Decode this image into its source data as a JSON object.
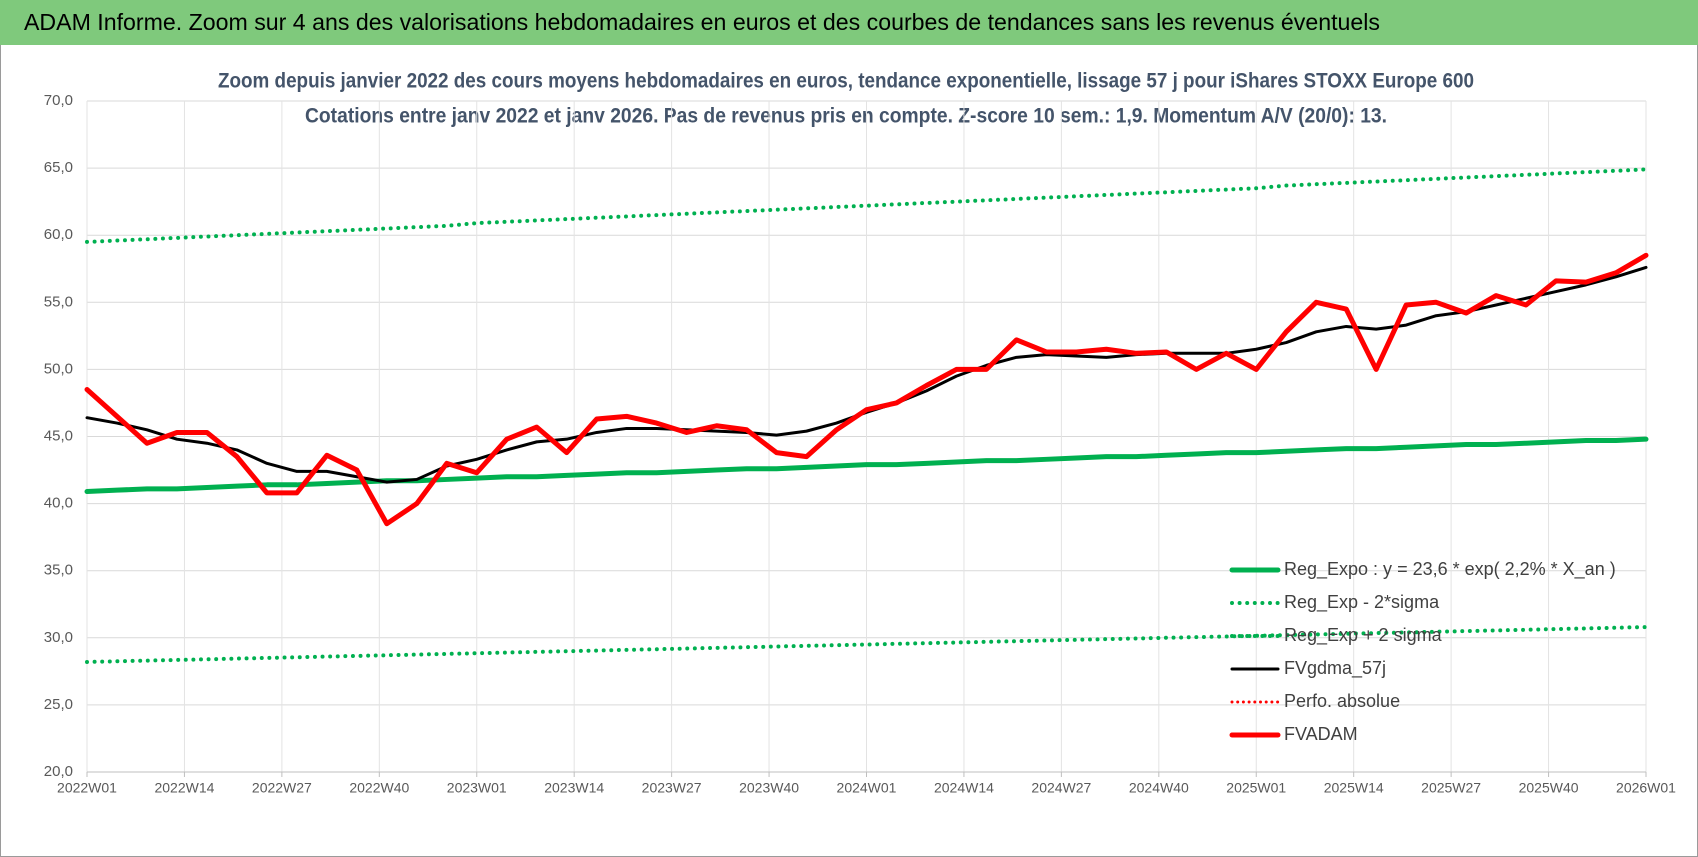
{
  "chart_data": {
    "type": "line",
    "title": "ADAM Informe. Zoom sur 4 ans des valorisations hebdomadaires en euros et des courbes de tendances sans les revenus éventuels",
    "subtitle": [
      "Zoom depuis janvier 2022 des cours moyens hebdomadaires en euros, tendance exponentielle, lissage 57 j pour iShares STOXX Europe 600",
      "Cotations entre janv 2022 et janv 2026. Pas de revenus pris en compte. Z-score 10 sem.: 1,9. Momentum A/V (20/0):  13."
    ],
    "x": [
      0,
      4,
      8,
      12,
      16,
      20,
      24,
      28,
      32,
      36,
      40,
      44,
      48,
      52,
      56,
      60,
      64,
      68,
      72,
      76,
      80,
      84,
      88,
      92,
      96,
      100,
      104,
      108,
      112,
      116,
      120,
      124,
      128,
      132,
      136,
      140,
      144,
      148,
      152,
      156,
      160,
      164,
      168,
      172,
      176,
      180,
      184,
      188,
      192,
      196,
      200,
      204,
      208
    ],
    "xlim": [
      0,
      208
    ],
    "xticks": [
      {
        "value": 0,
        "label": "2022W01"
      },
      {
        "value": 13,
        "label": "2022W14"
      },
      {
        "value": 26,
        "label": "2022W27"
      },
      {
        "value": 39,
        "label": "2022W40"
      },
      {
        "value": 52,
        "label": "2023W01"
      },
      {
        "value": 65,
        "label": "2023W14"
      },
      {
        "value": 78,
        "label": "2023W27"
      },
      {
        "value": 91,
        "label": "2023W40"
      },
      {
        "value": 104,
        "label": "2024W01"
      },
      {
        "value": 117,
        "label": "2024W14"
      },
      {
        "value": 130,
        "label": "2024W27"
      },
      {
        "value": 143,
        "label": "2024W40"
      },
      {
        "value": 156,
        "label": "2025W01"
      },
      {
        "value": 169,
        "label": "2025W14"
      },
      {
        "value": 182,
        "label": "2025W27"
      },
      {
        "value": 195,
        "label": "2025W40"
      },
      {
        "value": 208,
        "label": "2026W01"
      }
    ],
    "ylim": [
      20,
      70
    ],
    "yticks": [
      {
        "value": 20,
        "label": "20,0"
      },
      {
        "value": 25,
        "label": "25,0"
      },
      {
        "value": 30,
        "label": "30,0"
      },
      {
        "value": 35,
        "label": "35,0"
      },
      {
        "value": 40,
        "label": "40,0"
      },
      {
        "value": 45,
        "label": "45,0"
      },
      {
        "value": 50,
        "label": "50,0"
      },
      {
        "value": 55,
        "label": "55,0"
      },
      {
        "value": 60,
        "label": "60,0"
      },
      {
        "value": 65,
        "label": "65,0"
      },
      {
        "value": 70,
        "label": "70,0"
      }
    ],
    "grid": true,
    "legend": "lower right",
    "series": [
      {
        "name": "Reg_Expo : y = 23,6 * exp( 2,2% *  X_an )",
        "color": "#00b050",
        "dash": "solid",
        "width": 5,
        "values": [
          40.9,
          41.0,
          41.1,
          41.1,
          41.2,
          41.3,
          41.4,
          41.4,
          41.5,
          41.6,
          41.7,
          41.7,
          41.8,
          41.9,
          42.0,
          42.0,
          42.1,
          42.2,
          42.3,
          42.3,
          42.4,
          42.5,
          42.6,
          42.6,
          42.7,
          42.8,
          42.9,
          42.9,
          43.0,
          43.1,
          43.2,
          43.2,
          43.3,
          43.4,
          43.5,
          43.5,
          43.6,
          43.7,
          43.8,
          43.8,
          43.9,
          44.0,
          44.1,
          44.1,
          44.2,
          44.3,
          44.4,
          44.4,
          44.5,
          44.6,
          44.7,
          44.7,
          44.8
        ]
      },
      {
        "name": "Reg_Exp - 2*sigma",
        "color": "#00b050",
        "dash": "dotted",
        "width": 4,
        "values": [
          28.2,
          28.25,
          28.3,
          28.35,
          28.4,
          28.45,
          28.5,
          28.55,
          28.6,
          28.65,
          28.7,
          28.75,
          28.8,
          28.85,
          28.9,
          28.95,
          29,
          29.05,
          29.1,
          29.15,
          29.2,
          29.25,
          29.3,
          29.35,
          29.4,
          29.45,
          29.5,
          29.55,
          29.6,
          29.65,
          29.7,
          29.75,
          29.8,
          29.85,
          29.9,
          29.95,
          30,
          30.05,
          30.1,
          30.15,
          30.2,
          30.25,
          30.3,
          30.35,
          30.4,
          30.45,
          30.5,
          30.55,
          30.6,
          30.65,
          30.7,
          30.75,
          30.8
        ]
      },
      {
        "name": "Reg_Exp + 2 sigma",
        "color": "#00b050",
        "dash": "dotted",
        "width": 4,
        "values": [
          59.5,
          59.6,
          59.7,
          59.8,
          59.9,
          60.0,
          60.1,
          60.2,
          60.3,
          60.4,
          60.5,
          60.6,
          60.7,
          60.9,
          61.0,
          61.1,
          61.2,
          61.3,
          61.4,
          61.5,
          61.6,
          61.7,
          61.8,
          61.9,
          62.0,
          62.1,
          62.2,
          62.3,
          62.4,
          62.5,
          62.6,
          62.7,
          62.8,
          62.9,
          63.0,
          63.1,
          63.2,
          63.3,
          63.4,
          63.5,
          63.7,
          63.8,
          63.9,
          64.0,
          64.1,
          64.2,
          64.3,
          64.4,
          64.5,
          64.6,
          64.7,
          64.8,
          64.9
        ]
      },
      {
        "name": "FVgdma_57j",
        "color": "#000000",
        "dash": "solid",
        "width": 3,
        "values": [
          46.4,
          46.0,
          45.5,
          44.8,
          44.5,
          44.0,
          43.0,
          42.4,
          42.4,
          42.0,
          41.6,
          41.8,
          42.8,
          43.3,
          44.0,
          44.6,
          44.8,
          45.3,
          45.6,
          45.6,
          45.5,
          45.4,
          45.3,
          45.1,
          45.4,
          46.0,
          46.8,
          47.5,
          48.4,
          49.5,
          50.3,
          50.9,
          51.1,
          51.0,
          50.9,
          51.1,
          51.2,
          51.2,
          51.2,
          51.5,
          52.0,
          52.8,
          53.2,
          53.0,
          53.3,
          54.0,
          54.3,
          54.8,
          55.3,
          55.8,
          56.3,
          56.9,
          57.6
        ]
      },
      {
        "name": "Perfo. absolue",
        "color": "#ff0000",
        "dash": "dotted",
        "width": 3,
        "values": [
          null,
          null,
          null,
          null,
          null,
          null,
          null,
          null,
          null,
          null,
          null,
          null,
          null,
          null,
          null,
          null,
          null,
          null,
          null,
          null,
          null,
          null,
          null,
          null,
          null,
          null,
          null,
          null,
          null,
          null,
          null,
          null,
          null,
          null,
          null,
          null,
          null,
          null,
          null,
          null,
          null,
          null,
          null,
          null,
          null,
          null,
          null,
          null,
          null,
          null,
          null,
          null,
          null
        ]
      },
      {
        "name": "FVADAM",
        "color": "#ff0000",
        "dash": "solid",
        "width": 5,
        "values": [
          48.5,
          46.5,
          44.5,
          45.3,
          45.3,
          43.5,
          40.8,
          40.8,
          43.6,
          42.5,
          38.5,
          40.0,
          43.0,
          42.3,
          44.8,
          45.7,
          43.8,
          46.3,
          46.5,
          46.0,
          45.3,
          45.8,
          45.5,
          43.8,
          43.5,
          45.5,
          47.0,
          47.5,
          48.8,
          50.0,
          50.0,
          52.2,
          51.3,
          51.3,
          51.5,
          51.2,
          51.3,
          50.0,
          51.2,
          50.0,
          52.8,
          55.0,
          54.5,
          50.0,
          54.8,
          55.0,
          54.2,
          55.5,
          54.8,
          56.6,
          56.5,
          57.2,
          58.5
        ]
      }
    ]
  }
}
